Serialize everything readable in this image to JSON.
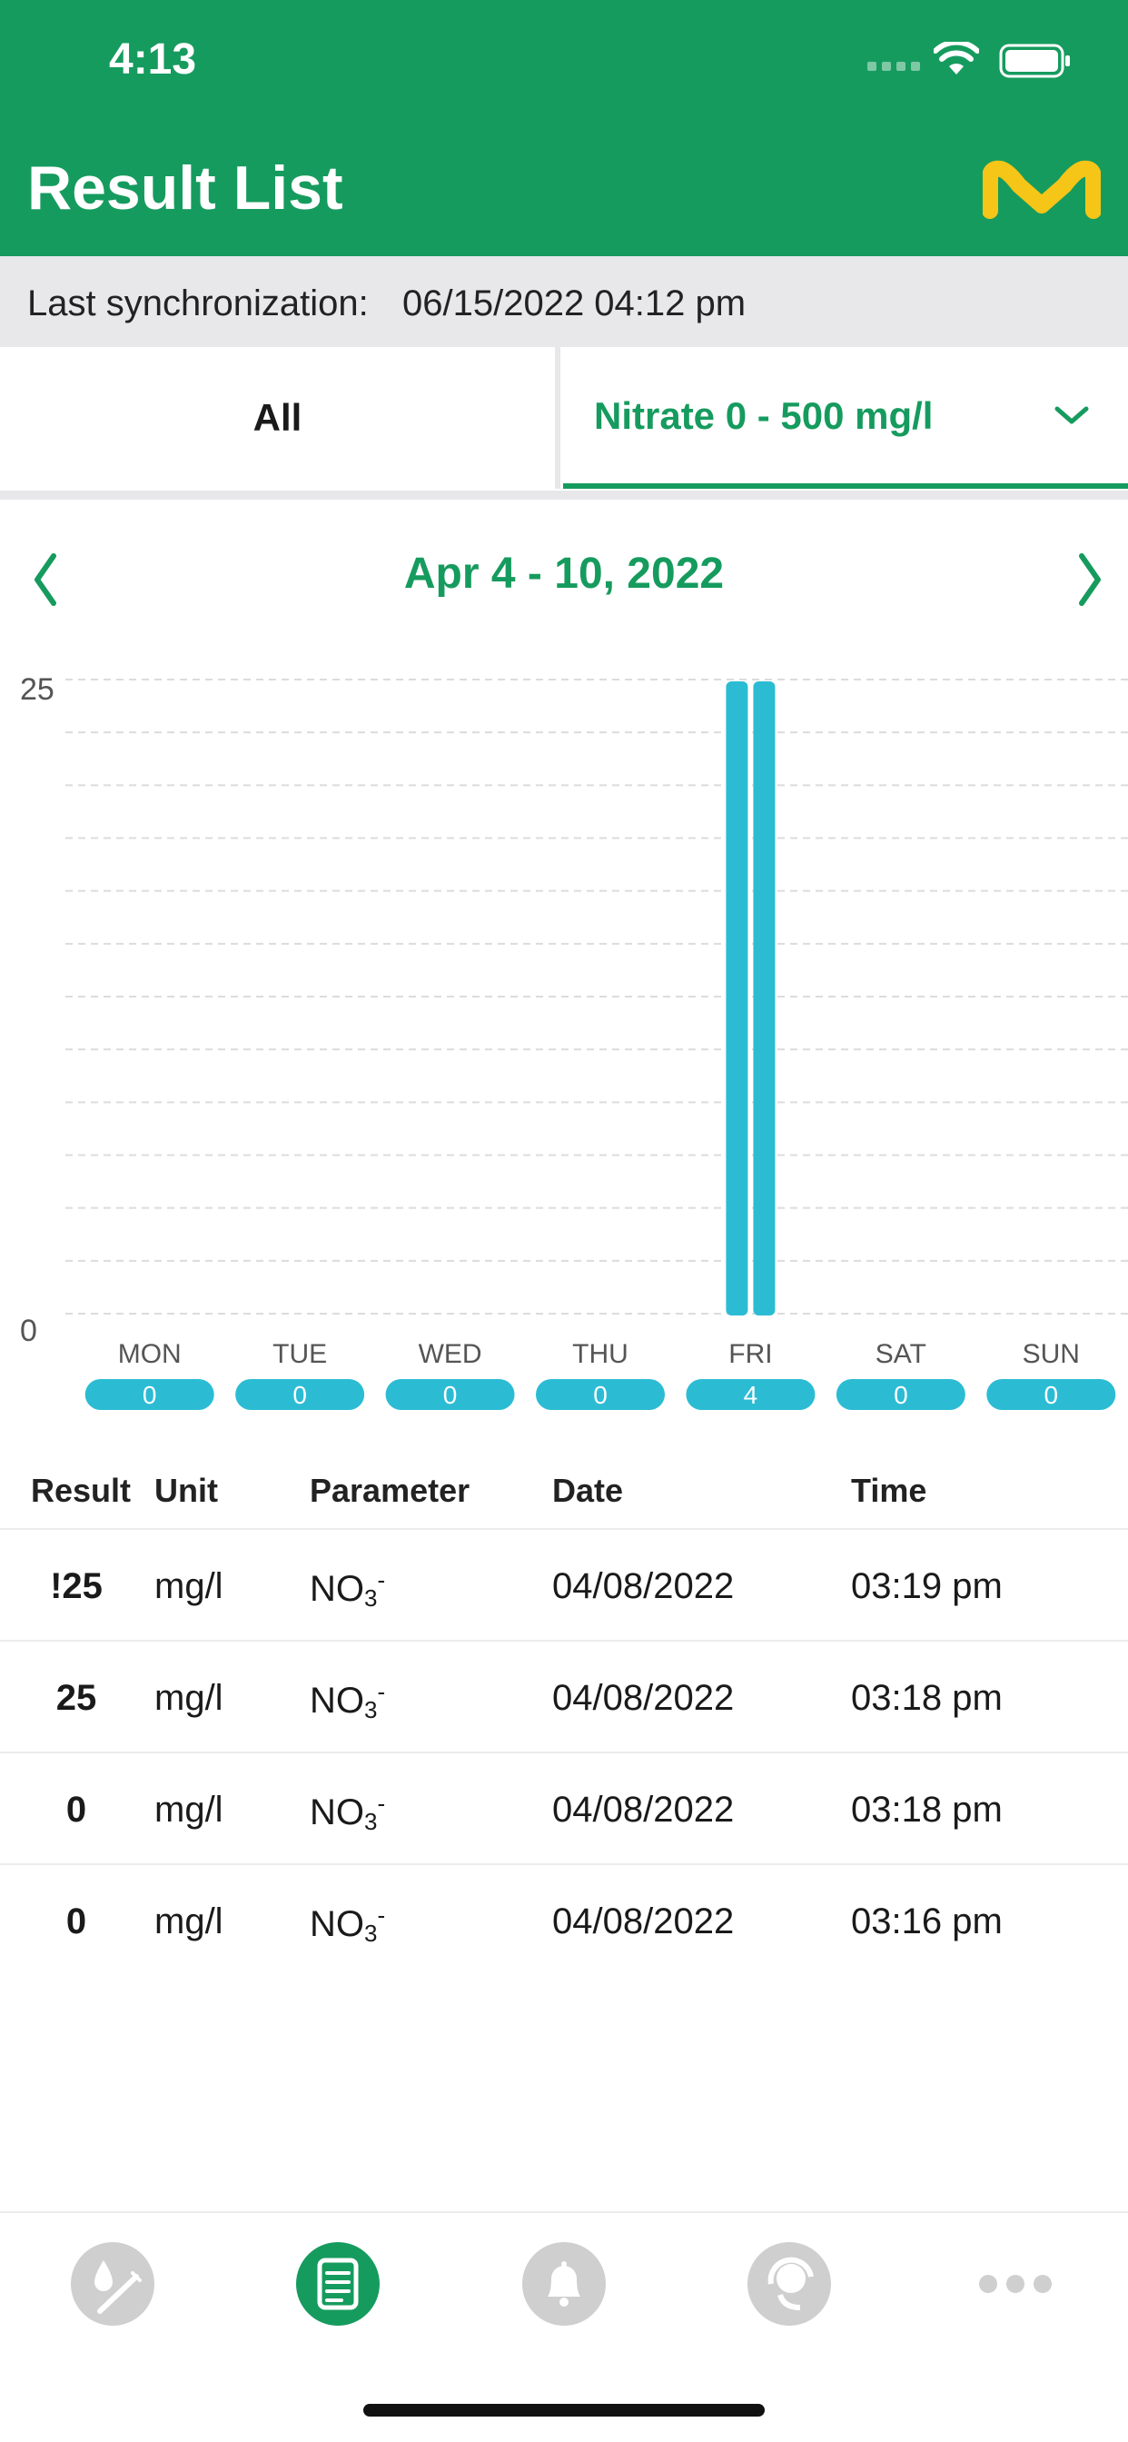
{
  "status_bar": {
    "time": "4:13",
    "icons": [
      "cellular-signal-icon",
      "wifi-icon",
      "battery-icon"
    ]
  },
  "header": {
    "title": "Result List",
    "logo": "merck-m-logo"
  },
  "sync": {
    "label": "Last synchronization:",
    "value": "06/15/2022 04:12 pm"
  },
  "tabs": {
    "all_label": "All",
    "parameter_label": "Nitrate 0 - 500 mg/l",
    "selected": "parameter"
  },
  "week_nav": {
    "label": "Apr 4 - 10, 2022",
    "prev_icon": "chevron-left-icon",
    "next_icon": "chevron-right-icon"
  },
  "chart_data": {
    "type": "bar",
    "y_labels": [
      "25",
      "0"
    ],
    "ylim": [
      0,
      25
    ],
    "grid": true,
    "categories": [
      "MON",
      "TUE",
      "WED",
      "THU",
      "FRI",
      "SAT",
      "SUN"
    ],
    "counts": [
      "0",
      "0",
      "0",
      "0",
      "4",
      "0",
      "0"
    ],
    "bars": [
      {
        "day": "FRI",
        "value": 25
      },
      {
        "day": "FRI",
        "value": 25
      }
    ]
  },
  "table": {
    "headers": {
      "result": "Result",
      "unit": "Unit",
      "parameter": "Parameter",
      "date": "Date",
      "time": "Time"
    },
    "rows": [
      {
        "result": "!25",
        "unit": "mg/l",
        "parameter": "NO",
        "parameter_sub": "3",
        "parameter_sup": "-",
        "date": "04/08/2022",
        "time": "03:19 pm"
      },
      {
        "result": "25",
        "unit": "mg/l",
        "parameter": "NO",
        "parameter_sub": "3",
        "parameter_sup": "-",
        "date": "04/08/2022",
        "time": "03:18 pm"
      },
      {
        "result": "0",
        "unit": "mg/l",
        "parameter": "NO",
        "parameter_sub": "3",
        "parameter_sup": "-",
        "date": "04/08/2022",
        "time": "03:18 pm"
      },
      {
        "result": "0",
        "unit": "mg/l",
        "parameter": "NO",
        "parameter_sub": "3",
        "parameter_sup": "-",
        "date": "04/08/2022",
        "time": "03:16 pm"
      }
    ]
  },
  "tab_bar": {
    "items": [
      {
        "icon": "water-test-icon",
        "active": false
      },
      {
        "icon": "result-list-icon",
        "active": true
      },
      {
        "icon": "notification-bell-icon",
        "active": false
      },
      {
        "icon": "support-headset-icon",
        "active": false
      },
      {
        "icon": "more-dots-icon",
        "active": false
      }
    ]
  },
  "colors": {
    "brand_green": "#169b5e",
    "bar_cyan": "#2bbcd4",
    "logo_yellow": "#f5c518",
    "inactive_icon": "#cfcfcf"
  }
}
